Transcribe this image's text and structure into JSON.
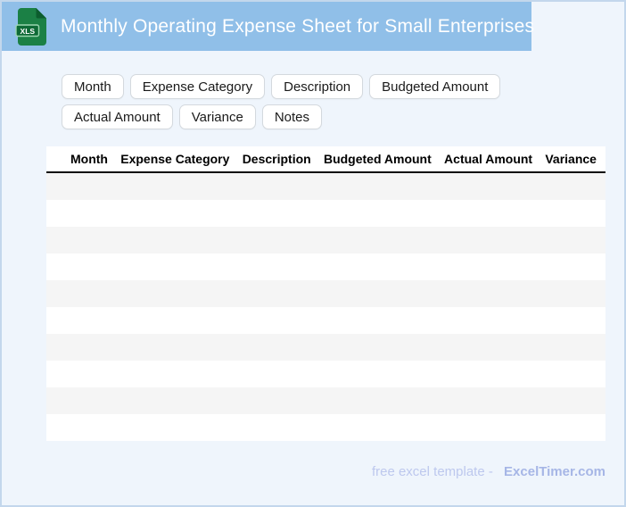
{
  "header": {
    "title": "Monthly Operating Expense Sheet for Small Enterprises",
    "file_icon": {
      "label": "XLS"
    }
  },
  "chips": {
    "items": [
      "Month",
      "Expense Category",
      "Description",
      "Budgeted Amount",
      "Actual Amount",
      "Variance",
      "Notes"
    ]
  },
  "table": {
    "columns": [
      "Month",
      "Expense Category",
      "Description",
      "Budgeted Amount",
      "Actual Amount",
      "Variance"
    ],
    "empty_row_count": 10
  },
  "footer": {
    "label": "free excel template -",
    "brand": "ExcelTimer.com"
  },
  "colors": {
    "header_background": "#90bfe8",
    "page_background": "#eff5fc",
    "page_border": "#c3d7ec",
    "icon_green": "#1b8045",
    "icon_fold_green": "#0c5d2e",
    "icon_badge_green": "#0e6a36",
    "row_stripe": "#f5f5f5",
    "footer_label": "#bdc8ee",
    "footer_brand": "#a6b6e6"
  }
}
